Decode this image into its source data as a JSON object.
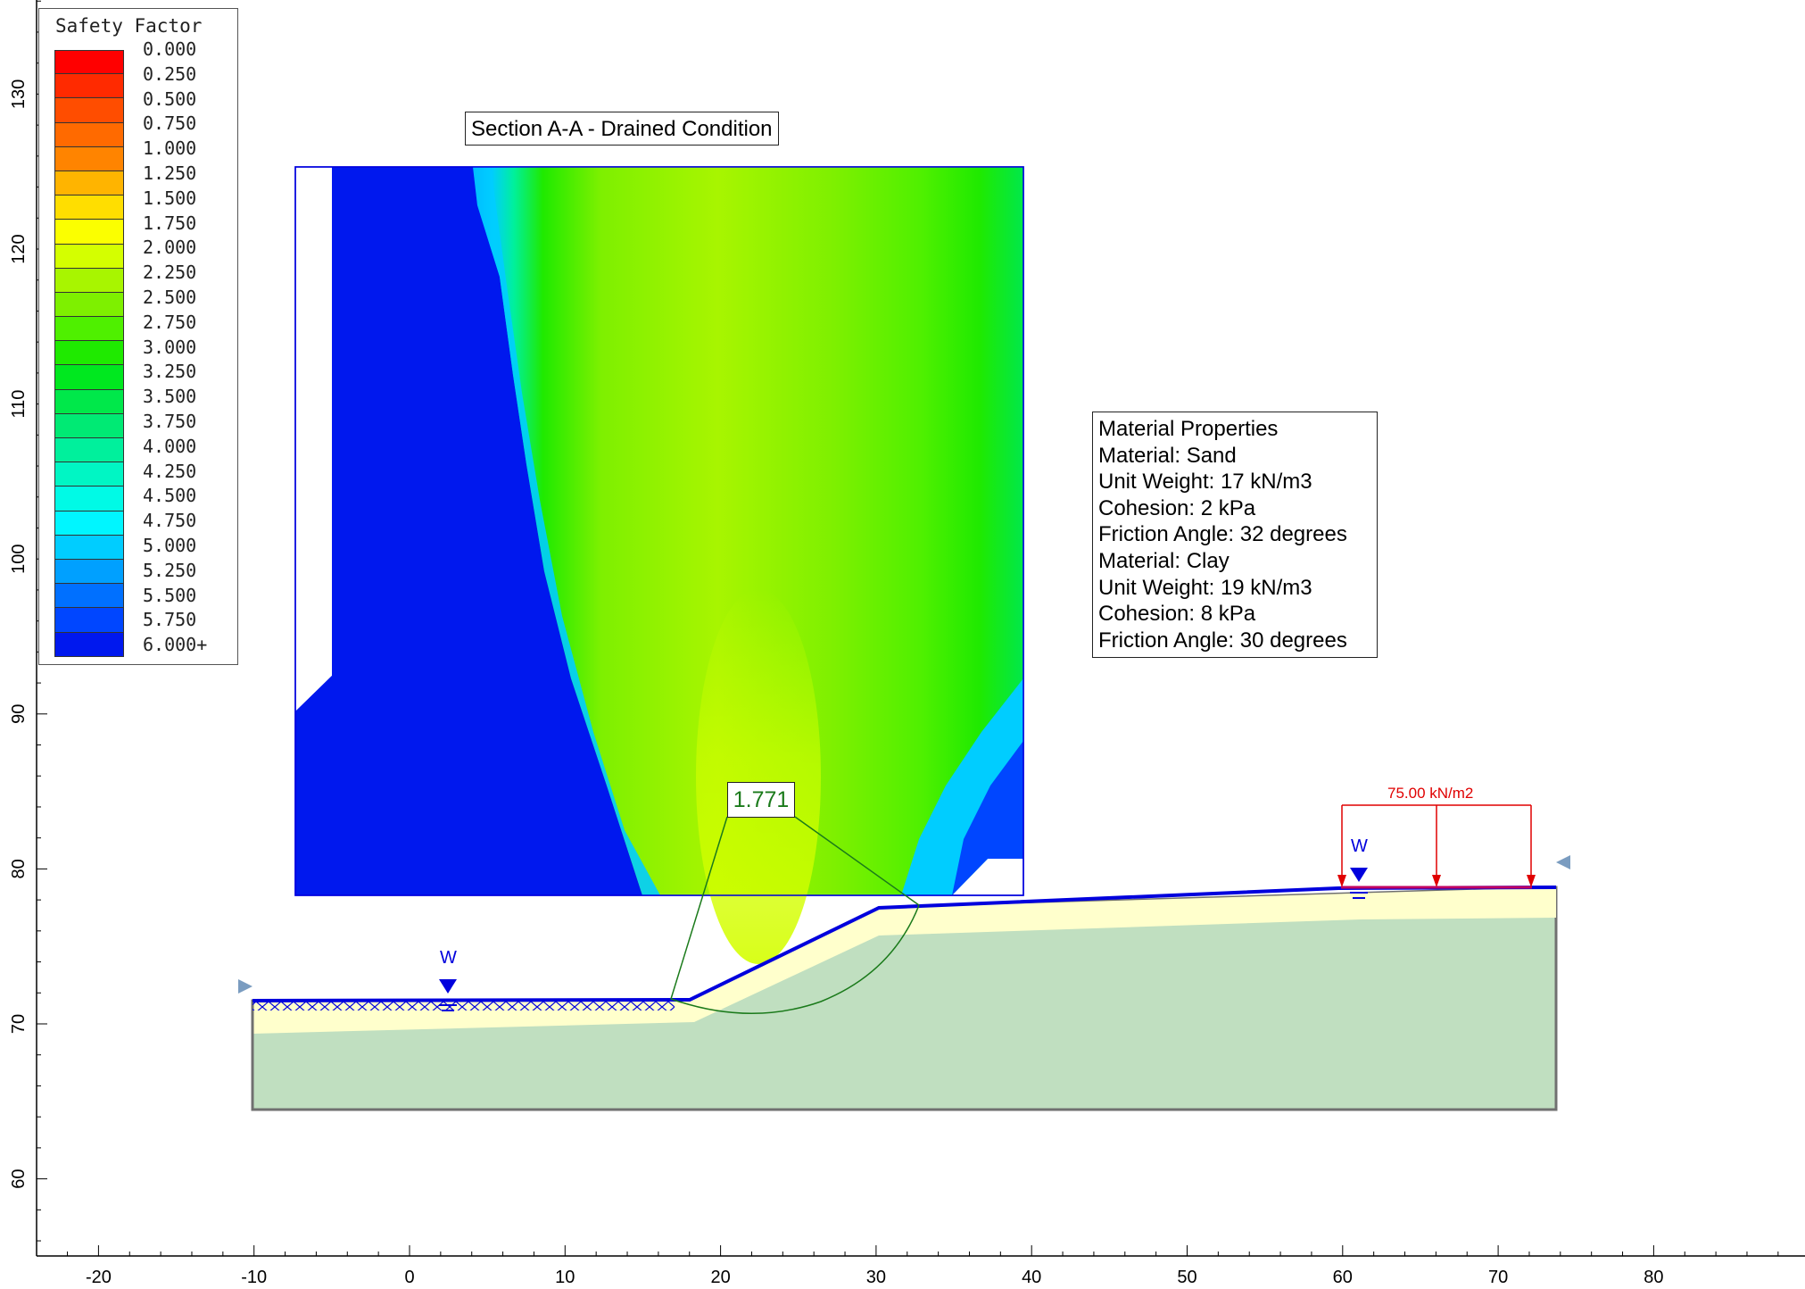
{
  "legend": {
    "title": "Safety Factor",
    "entries": [
      {
        "label": "0.000",
        "color": "#ff0000"
      },
      {
        "label": "0.250",
        "color": "#ff2a00"
      },
      {
        "label": "0.500",
        "color": "#ff4d00"
      },
      {
        "label": "0.750",
        "color": "#ff6a00"
      },
      {
        "label": "1.000",
        "color": "#ff8400"
      },
      {
        "label": "1.250",
        "color": "#ffb400"
      },
      {
        "label": "1.500",
        "color": "#ffde00"
      },
      {
        "label": "1.750",
        "color": "#fbff00"
      },
      {
        "label": "2.000",
        "color": "#d4ff00"
      },
      {
        "label": "2.250",
        "color": "#a8f500"
      },
      {
        "label": "2.500",
        "color": "#7ef000"
      },
      {
        "label": "2.750",
        "color": "#4ff000"
      },
      {
        "label": "3.000",
        "color": "#1fea00"
      },
      {
        "label": "3.250",
        "color": "#00e81f"
      },
      {
        "label": "3.500",
        "color": "#00e84a"
      },
      {
        "label": "3.750",
        "color": "#00ea74"
      },
      {
        "label": "4.000",
        "color": "#00f09c"
      },
      {
        "label": "4.250",
        "color": "#00f6c4"
      },
      {
        "label": "4.500",
        "color": "#00fae6"
      },
      {
        "label": "4.750",
        "color": "#00f6ff"
      },
      {
        "label": "5.000",
        "color": "#00cdff"
      },
      {
        "label": "5.250",
        "color": "#00a0ff"
      },
      {
        "label": "5.500",
        "color": "#0070ff"
      },
      {
        "label": "5.750",
        "color": "#0046ff"
      },
      {
        "label": "6.000+",
        "color": "#0018ee"
      }
    ]
  },
  "section_title": "Section A-A - Drained Condition",
  "material_properties": [
    "Material Properties",
    "Material: Sand",
    "Unit Weight: 17 kN/m3",
    "Cohesion: 2 kPa",
    "Friction Angle: 32 degrees",
    "Material: Clay",
    "Unit Weight: 19 kN/m3",
    "Cohesion: 8 kPa",
    "Friction Angle: 30 degrees"
  ],
  "factor_of_safety": "1.771",
  "distributed_load": "75.00 kN/m2",
  "water_marker": "W",
  "axes": {
    "x_ticks": [
      -20,
      -10,
      0,
      10,
      20,
      30,
      40,
      50,
      60,
      70,
      80
    ],
    "y_ticks": [
      60,
      70,
      80,
      90,
      100,
      110,
      120,
      130
    ]
  },
  "colors": {
    "surface_line": "#0000dd",
    "sand": "#ffffcc",
    "clay": "#c0dfc0",
    "slip_surface": "#1a7a1a",
    "load": "#e00000",
    "boundary": "#707070"
  }
}
